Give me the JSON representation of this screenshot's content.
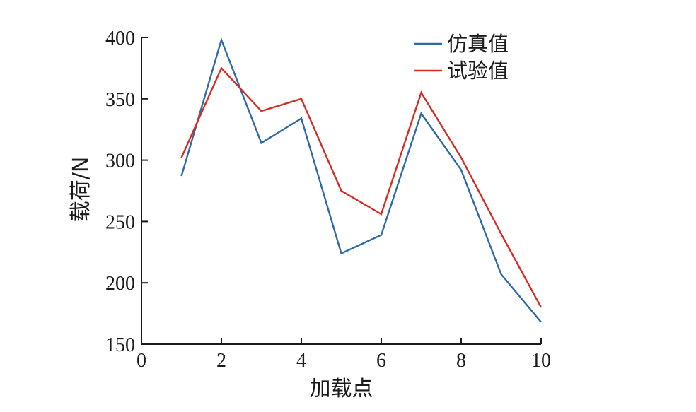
{
  "chart_data": {
    "type": "line",
    "title": "",
    "xlabel": "加载点",
    "ylabel": "载荷/N",
    "xlim": [
      0,
      10
    ],
    "ylim": [
      150,
      400
    ],
    "xticks": [
      0,
      2,
      4,
      6,
      8,
      10
    ],
    "yticks": [
      150,
      200,
      250,
      300,
      350,
      400
    ],
    "grid": false,
    "legend_position": "top-right",
    "x": [
      1,
      2,
      3,
      4,
      5,
      6,
      7,
      8,
      9,
      10
    ],
    "series": [
      {
        "name": "仿真值",
        "color": "#2e6aa8",
        "values": [
          287,
          398,
          314,
          334,
          224,
          239,
          338,
          292,
          207,
          168
        ]
      },
      {
        "name": "试验值",
        "color": "#d62c22",
        "values": [
          302,
          375,
          340,
          350,
          275,
          256,
          355,
          302,
          240,
          180
        ]
      }
    ]
  }
}
